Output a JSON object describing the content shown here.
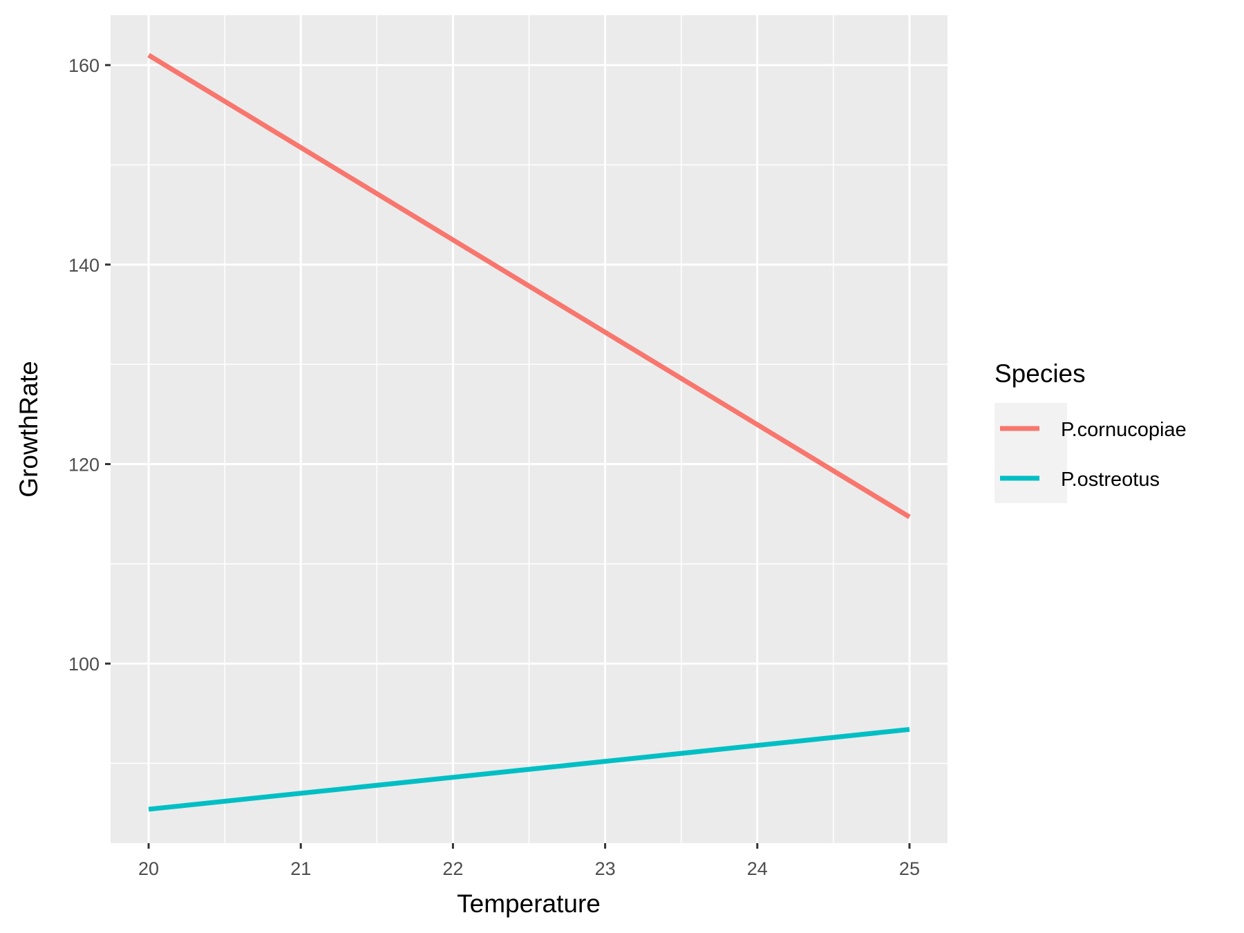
{
  "chart_data": {
    "type": "line",
    "xlabel": "Temperature",
    "ylabel": "GrowthRate",
    "xlim": [
      19.75,
      25.25
    ],
    "ylim": [
      82,
      165
    ],
    "x_ticks": [
      20,
      21,
      22,
      23,
      24,
      25
    ],
    "y_ticks": [
      100,
      120,
      140,
      160
    ],
    "grid": true,
    "legend": {
      "title": "Species",
      "position": "right"
    },
    "series": [
      {
        "name": "P.cornucopiae",
        "color": "#F8766D",
        "x": [
          20,
          25
        ],
        "y": [
          161,
          114.7
        ]
      },
      {
        "name": "P.ostreotus",
        "color": "#00BFC4",
        "x": [
          20,
          25
        ],
        "y": [
          85.4,
          93.4
        ]
      }
    ]
  }
}
